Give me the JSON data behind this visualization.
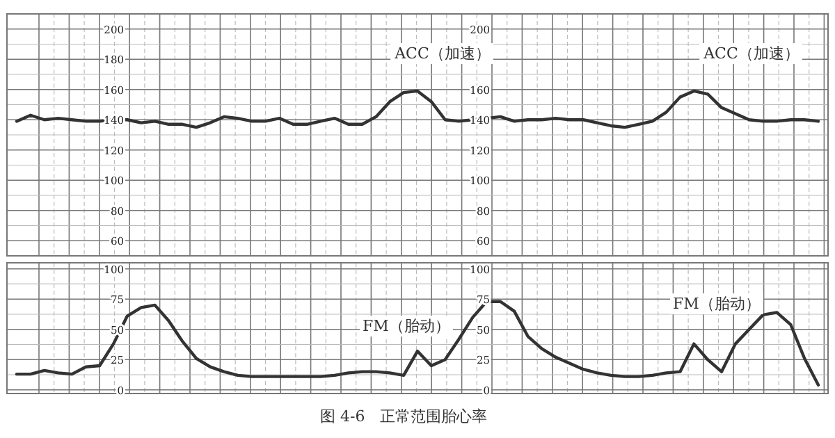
{
  "chart_data": [
    {
      "type": "line",
      "categories": [
        null,
        null,
        null,
        null,
        null,
        null,
        null,
        null,
        null,
        null,
        null,
        null,
        null,
        null,
        null,
        null,
        null,
        null,
        null,
        null,
        null,
        null,
        null,
        null,
        null,
        null,
        null,
        null,
        null,
        null,
        null,
        null,
        null,
        null,
        null,
        null,
        null,
        null,
        null,
        null,
        null,
        null,
        null,
        null,
        null,
        null,
        null,
        null,
        null,
        null,
        null,
        null,
        null,
        null,
        null,
        null,
        null,
        null,
        null
      ],
      "series": [
        {
          "color": "#333333",
          "values": [
            139,
            143,
            140,
            141,
            140,
            139,
            139,
            140,
            140,
            138,
            139,
            137,
            137,
            135,
            138,
            142,
            141,
            139,
            139,
            141,
            137,
            137,
            139,
            141,
            137,
            137,
            142,
            152,
            158,
            159,
            152,
            140,
            139,
            140,
            141,
            142,
            139,
            140,
            140,
            141,
            140,
            140,
            138,
            136,
            135,
            137,
            139,
            145,
            155,
            159,
            157,
            148,
            144,
            140,
            139,
            139,
            140,
            140,
            139
          ]
        }
      ],
      "ylim": [
        50,
        210
      ],
      "yticks": [
        60,
        80,
        100,
        120,
        140,
        160,
        180,
        200
      ],
      "y2lim": [
        50,
        210
      ],
      "y2ticks": [
        60,
        80,
        100,
        120,
        140,
        160,
        200
      ],
      "grid": true,
      "annotations": [
        "ACC（加速）",
        "ACC（加速）"
      ]
    },
    {
      "type": "line",
      "categories": [
        null,
        null,
        null,
        null,
        null,
        null,
        null,
        null,
        null,
        null,
        null,
        null,
        null,
        null,
        null,
        null,
        null,
        null,
        null,
        null,
        null,
        null,
        null,
        null,
        null,
        null,
        null,
        null,
        null,
        null,
        null,
        null,
        null,
        null,
        null,
        null,
        null,
        null,
        null,
        null,
        null,
        null,
        null,
        null,
        null,
        null,
        null,
        null,
        null,
        null,
        null,
        null,
        null,
        null,
        null,
        null,
        null,
        null,
        null
      ],
      "series": [
        {
          "color": "#333333",
          "values": [
            13,
            13,
            16,
            14,
            13,
            19,
            20,
            38,
            61,
            68,
            70,
            57,
            40,
            26,
            19,
            15,
            12,
            11,
            11,
            11,
            11,
            11,
            11,
            12,
            14,
            15,
            15,
            14,
            12,
            32,
            20,
            25,
            42,
            60,
            73,
            73,
            65,
            44,
            34,
            27,
            22,
            17,
            14,
            12,
            11,
            11,
            12,
            14,
            15,
            38,
            25,
            15,
            38,
            50,
            62,
            64,
            54,
            26,
            4
          ]
        }
      ],
      "ylim": [
        -3,
        105
      ],
      "yticks": [
        0,
        25,
        50,
        75,
        100
      ],
      "y2lim": [
        -3,
        105
      ],
      "y2ticks": [
        0,
        25,
        50,
        75,
        100
      ],
      "grid": true,
      "annotations": [
        "FM（胎动）",
        "FM（胎动）",
        "图 4-6　正常范围胎心率"
      ]
    }
  ]
}
